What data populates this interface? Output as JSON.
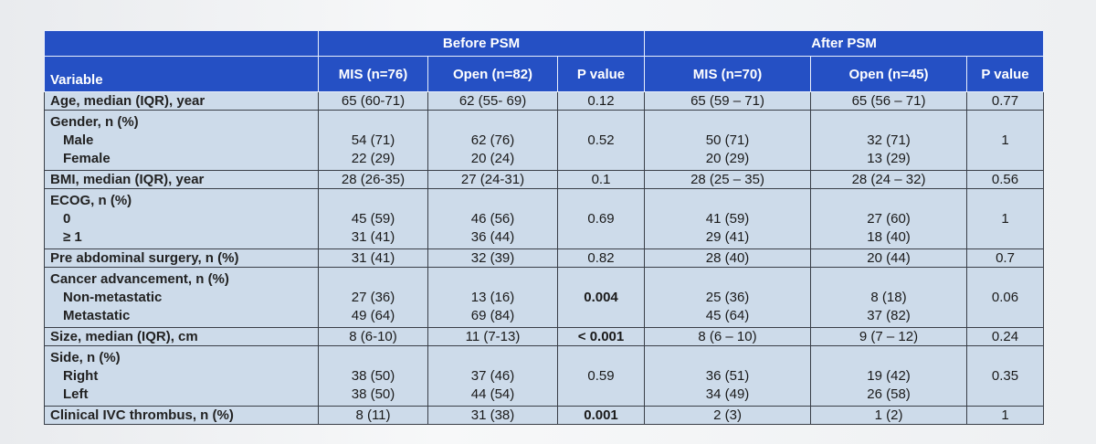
{
  "table": {
    "header_groups": [
      {
        "text": "Before PSM",
        "span": 3
      },
      {
        "text": "After PSM",
        "span": 3
      }
    ],
    "columns": [
      "Variable",
      "MIS (n=76)",
      "Open (n=82)",
      "P value",
      "MIS (n=70)",
      "Open (n=45)",
      "P value"
    ],
    "rows": [
      {
        "label": "Age, median (IQR), year",
        "cells": [
          "65 (60-71)",
          "62 (55- 69)",
          "0.12",
          "65 (59 – 71)",
          "65 (56 – 71)",
          "0.77"
        ]
      },
      {
        "label": "Gender, n (%)",
        "sublabels": [
          "Male",
          "Female"
        ],
        "cells": [
          [
            "54 (71)",
            "22 (29)"
          ],
          [
            "62 (76)",
            "20 (24)"
          ],
          "0.52",
          [
            "50 (71)",
            "20 (29)"
          ],
          [
            "32 (71)",
            "13 (29)"
          ],
          "1"
        ]
      },
      {
        "label": "BMI, median (IQR), year",
        "cells": [
          "28 (26-35)",
          "27 (24-31)",
          "0.1",
          "28 (25 – 35)",
          "28 (24 – 32)",
          "0.56"
        ]
      },
      {
        "label": "ECOG, n (%)",
        "sublabels": [
          "0",
          "≥ 1"
        ],
        "cells": [
          [
            "45 (59)",
            "31 (41)"
          ],
          [
            "46 (56)",
            "36 (44)"
          ],
          "0.69",
          [
            "41 (59)",
            "29 (41)"
          ],
          [
            "27 (60)",
            "18 (40)"
          ],
          "1"
        ]
      },
      {
        "label": "Pre abdominal surgery, n (%)",
        "cells": [
          "31 (41)",
          "32 (39)",
          "0.82",
          "28 (40)",
          "20 (44)",
          "0.7"
        ]
      },
      {
        "label": "Cancer advancement, n (%)",
        "sublabels": [
          "Non-metastatic",
          "Metastatic"
        ],
        "cells": [
          [
            "27 (36)",
            "49 (64)"
          ],
          [
            "13 (16)",
            "69 (84)"
          ],
          {
            "text": "0.004",
            "bold": true
          },
          [
            "25 (36)",
            "45 (64)"
          ],
          [
            "8 (18)",
            "37 (82)"
          ],
          "0.06"
        ]
      },
      {
        "label": "Size, median (IQR), cm",
        "cells": [
          "8 (6-10)",
          "11 (7-13)",
          {
            "text": "< 0.001",
            "bold": true
          },
          "8 (6 – 10)",
          "9 (7 – 12)",
          "0.24"
        ]
      },
      {
        "label": "Side, n (%)",
        "sublabels": [
          "Right",
          "Left"
        ],
        "cells": [
          [
            "38 (50)",
            "38 (50)"
          ],
          [
            "37 (46)",
            "44 (54)"
          ],
          "0.59",
          [
            "36 (51)",
            "34 (49)"
          ],
          [
            "19 (42)",
            "26 (58)"
          ],
          "0.35"
        ]
      },
      {
        "label": "Clinical IVC thrombus, n (%)",
        "cells": [
          "8 (11)",
          "31 (38)",
          {
            "text": "0.001",
            "bold": true
          },
          "2 (3)",
          "1 (2)",
          "1"
        ]
      }
    ]
  }
}
